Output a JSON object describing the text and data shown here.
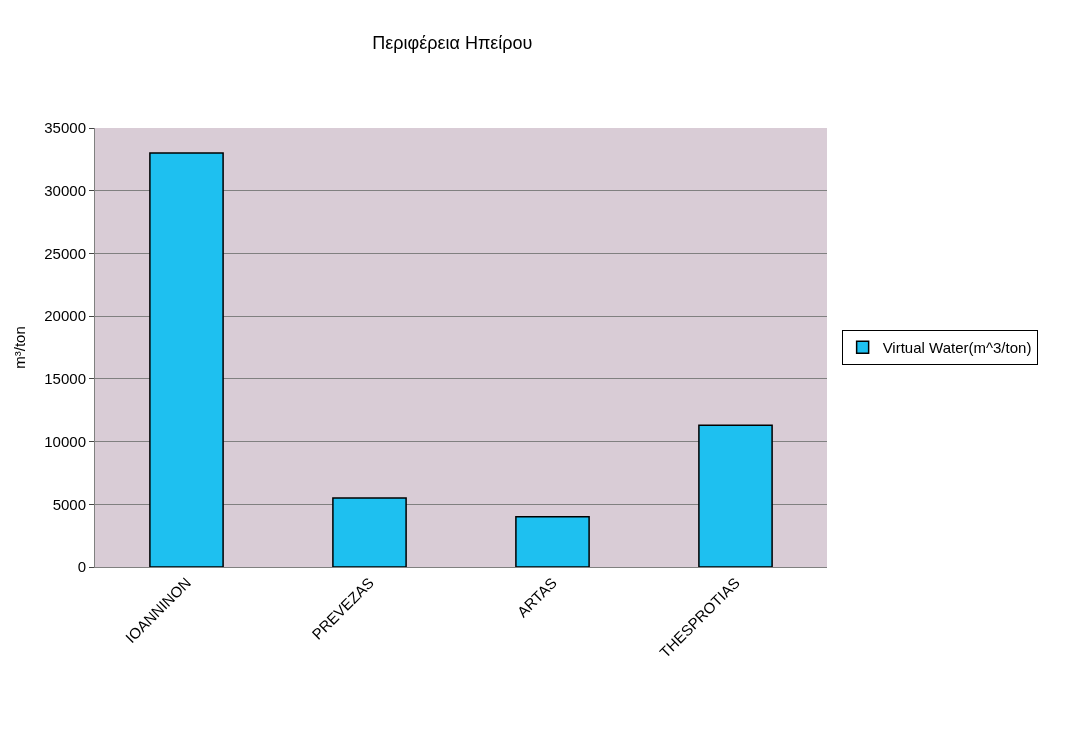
{
  "chart_data": {
    "type": "bar",
    "title": "Περιφέρεια Ηπείρου",
    "ylabel": "m³/ton",
    "categories": [
      "IOANNINON",
      "PREVEZAS",
      "ARTAS",
      "THESPROTIAS"
    ],
    "series": [
      {
        "name": "Virtual Water(m^3/ton)",
        "color": "#1ec0f0",
        "values": [
          33000,
          5500,
          4000,
          11300
        ]
      }
    ],
    "ylim": [
      0,
      35000
    ],
    "yticks": [
      0,
      5000,
      10000,
      15000,
      20000,
      25000,
      30000,
      35000
    ],
    "grid": "y",
    "legend": "right"
  }
}
